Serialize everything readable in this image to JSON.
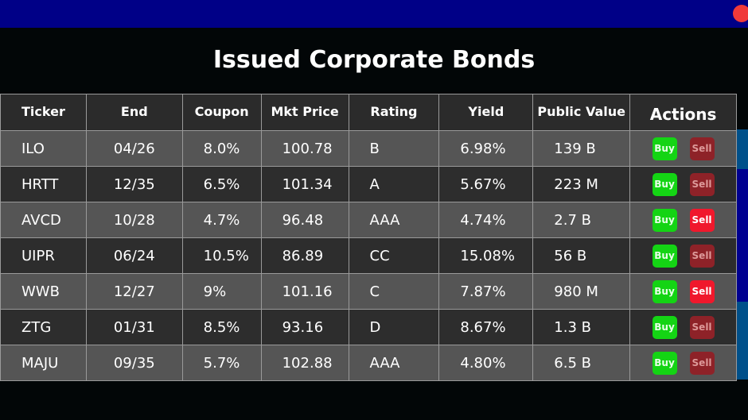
{
  "title": "Issued Corporate Bonds",
  "headers": [
    "Ticker",
    "End",
    "Coupon",
    "Mkt Price",
    "Rating",
    "Yield",
    "Public Value",
    "Actions"
  ],
  "buy_label": "Buy",
  "sell_label": "Sell",
  "rows": [
    [
      "ILO",
      "04/26",
      "8.0%",
      "100.78",
      "B",
      "6.98%",
      "139 B",
      false
    ],
    [
      "HRTT",
      "12/35",
      "6.5%",
      "101.34",
      "A",
      "5.67%",
      "223 M",
      false
    ],
    [
      "AVCD",
      "10/28",
      "4.7%",
      "96.48",
      "AAA",
      "4.74%",
      "2.7 B",
      true
    ],
    [
      "UIPR",
      "06/24",
      "10.5%",
      "86.89",
      "CC",
      "15.08%",
      "56 B",
      false
    ],
    [
      "WWB",
      "12/27",
      "9%",
      "101.16",
      "C",
      "7.87%",
      "980 M",
      true
    ],
    [
      "ZTG",
      "01/31",
      "8.5%",
      "93.16",
      "D",
      "8.67%",
      "1.3 B",
      false
    ],
    [
      "MAJU",
      "09/35",
      "5.7%",
      "102.88",
      "AAA",
      "4.80%",
      "6.5 B",
      false
    ]
  ],
  "colors": {
    "topbar": "#000087",
    "buy": "#14d414",
    "sell_active": "#f0182c",
    "sell_inactive": "#8e2228"
  }
}
